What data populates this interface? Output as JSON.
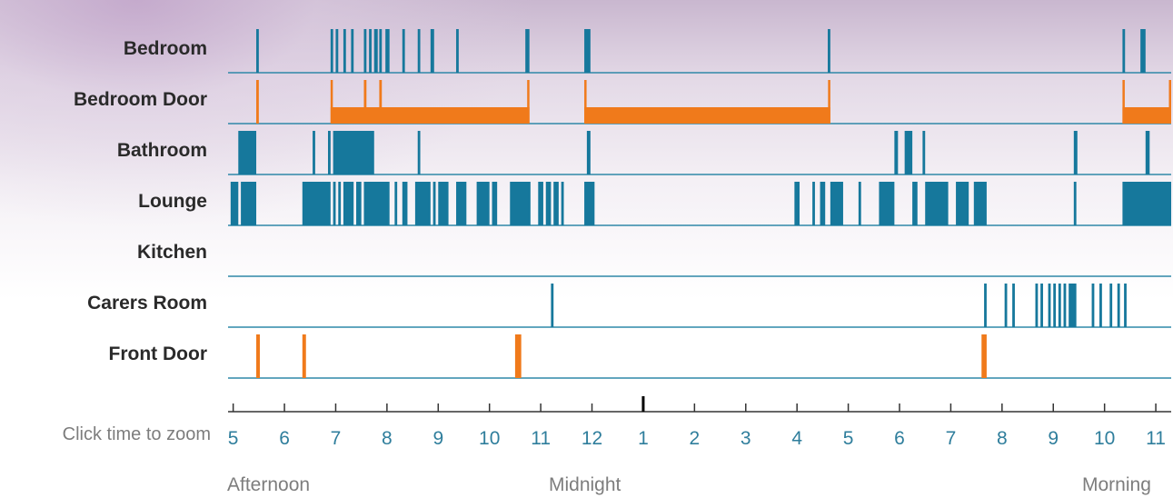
{
  "colors": {
    "motion": "#16789c",
    "door": "#f07a1b",
    "baseline": "#2f88a8",
    "axis": "#333333",
    "midnight_tick": "#000000",
    "tick_label": "#2f7e9c"
  },
  "axis": {
    "zoom_hint": "Click time to zoom",
    "tick_labels": [
      "5",
      "6",
      "7",
      "8",
      "9",
      "10",
      "11",
      "12",
      "1",
      "2",
      "3",
      "4",
      "5",
      "6",
      "7",
      "8",
      "9",
      "10",
      "11"
    ],
    "afternoon_label": "Afternoon",
    "midnight_label": "Midnight",
    "morning_label": "Morning"
  },
  "chart_data": {
    "type": "timeline",
    "x_unit": "hour (17 = 5pm, 24 = midnight, 35 = 11am next day)",
    "xlim": [
      16.9,
      35.3
    ],
    "rows": [
      {
        "label": "Bedroom",
        "kind": "motion",
        "events": [
          [
            17.45,
            17.5
          ],
          [
            18.9,
            18.95
          ],
          [
            19.0,
            19.05
          ],
          [
            19.15,
            19.2
          ],
          [
            19.3,
            19.35
          ],
          [
            19.55,
            19.6
          ],
          [
            19.65,
            19.7
          ],
          [
            19.75,
            19.82
          ],
          [
            19.85,
            19.9
          ],
          [
            19.97,
            20.05
          ],
          [
            20.3,
            20.35
          ],
          [
            20.6,
            20.65
          ],
          [
            20.85,
            20.92
          ],
          [
            21.35,
            21.4
          ],
          [
            22.7,
            22.78
          ],
          [
            23.85,
            23.97
          ],
          [
            28.6,
            28.65
          ],
          [
            34.35,
            34.4
          ],
          [
            34.7,
            34.8
          ]
        ]
      },
      {
        "label": "Bedroom Door",
        "kind": "door",
        "events": [
          [
            17.45,
            17.5
          ],
          [
            19.55,
            19.6
          ],
          [
            19.85,
            19.9
          ],
          [
            18.9,
            22.78
          ],
          [
            23.85,
            28.65
          ],
          [
            34.35,
            35.3
          ]
        ]
      },
      {
        "label": "Bathroom",
        "kind": "motion",
        "events": [
          [
            17.1,
            17.45
          ],
          [
            18.55,
            18.6
          ],
          [
            18.85,
            18.9
          ],
          [
            18.95,
            19.75
          ],
          [
            20.6,
            20.65
          ],
          [
            23.9,
            23.97
          ],
          [
            29.9,
            29.97
          ],
          [
            30.1,
            30.25
          ],
          [
            30.45,
            30.5
          ],
          [
            33.4,
            33.47
          ],
          [
            34.8,
            34.88
          ]
        ]
      },
      {
        "label": "Lounge",
        "kind": "motion",
        "events": [
          [
            16.95,
            17.1
          ],
          [
            17.15,
            17.45
          ],
          [
            18.35,
            18.9
          ],
          [
            18.95,
            19.0
          ],
          [
            19.05,
            19.1
          ],
          [
            19.15,
            19.35
          ],
          [
            19.4,
            19.5
          ],
          [
            19.55,
            20.05
          ],
          [
            20.15,
            20.2
          ],
          [
            20.3,
            20.4
          ],
          [
            20.55,
            20.85
          ],
          [
            20.9,
            20.95
          ],
          [
            21.0,
            21.2
          ],
          [
            21.35,
            21.55
          ],
          [
            21.75,
            22.0
          ],
          [
            22.05,
            22.15
          ],
          [
            22.4,
            22.8
          ],
          [
            22.95,
            23.05
          ],
          [
            23.1,
            23.2
          ],
          [
            23.25,
            23.35
          ],
          [
            23.4,
            23.45
          ],
          [
            23.85,
            24.05
          ],
          [
            27.95,
            28.05
          ],
          [
            28.3,
            28.35
          ],
          [
            28.45,
            28.55
          ],
          [
            28.65,
            28.9
          ],
          [
            29.2,
            29.25
          ],
          [
            29.6,
            29.9
          ],
          [
            30.25,
            30.35
          ],
          [
            30.5,
            30.95
          ],
          [
            31.1,
            31.35
          ],
          [
            31.45,
            31.7
          ],
          [
            33.4,
            33.45
          ],
          [
            34.35,
            35.3
          ]
        ]
      },
      {
        "label": "Kitchen",
        "kind": "motion",
        "events": []
      },
      {
        "label": "Carers Room",
        "kind": "motion",
        "events": [
          [
            23.2,
            23.25
          ],
          [
            31.65,
            31.7
          ],
          [
            32.05,
            32.1
          ],
          [
            32.2,
            32.25
          ],
          [
            32.65,
            32.7
          ],
          [
            32.75,
            32.8
          ],
          [
            32.9,
            32.95
          ],
          [
            33.0,
            33.05
          ],
          [
            33.1,
            33.15
          ],
          [
            33.2,
            33.25
          ],
          [
            33.3,
            33.45
          ],
          [
            33.75,
            33.8
          ],
          [
            33.9,
            33.95
          ],
          [
            34.1,
            34.15
          ],
          [
            34.25,
            34.3
          ],
          [
            34.38,
            34.43
          ]
        ]
      },
      {
        "label": "Front Door",
        "kind": "door",
        "events": [
          [
            17.45,
            17.52
          ],
          [
            18.35,
            18.42
          ],
          [
            22.5,
            22.62
          ],
          [
            31.6,
            31.7
          ]
        ]
      }
    ]
  }
}
